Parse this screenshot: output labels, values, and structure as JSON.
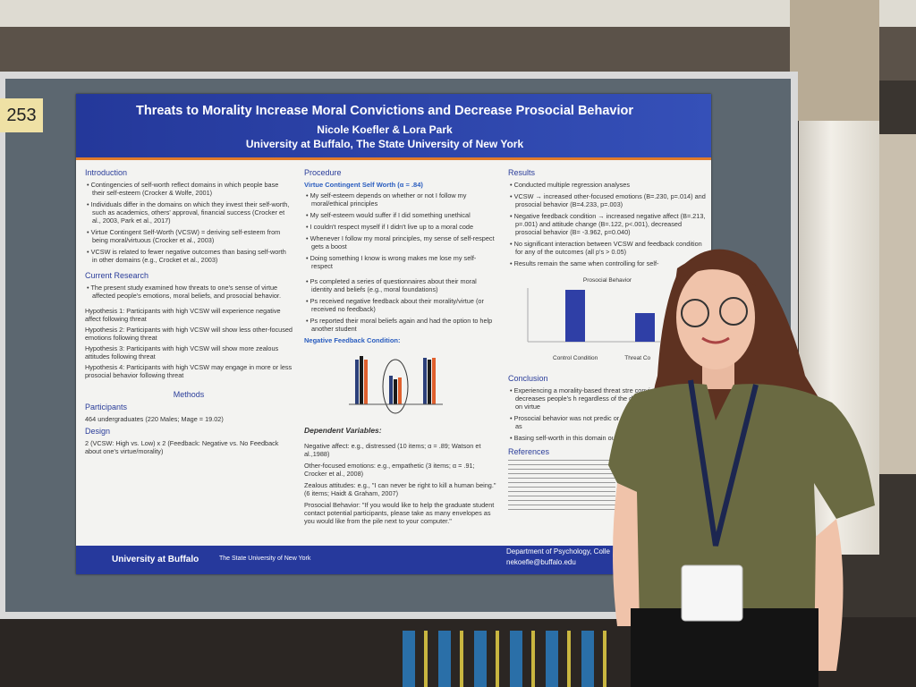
{
  "board_number": "253",
  "poster": {
    "title": "Threats to Morality Increase Moral Convictions and Decrease Prosocial Behavior",
    "authors": "Nicole Koefler & Lora Park",
    "affiliation": "University at Buffalo, The State University of New York",
    "introduction": {
      "heading": "Introduction",
      "bullets": [
        "Contingencies of self-worth reflect domains in which people base their self-esteem (Crocker & Wolfe, 2001)",
        "Individuals differ in the domains on which they invest their self-worth, such as academics, others' approval, financial success (Crocker et al., 2003, Park et al., 2017)",
        "Virtue Contingent Self-Worth (VCSW) = deriving self-esteem from being moral/virtuous (Crocker et al., 2003)",
        "VCSW is related to fewer negative outcomes than basing self-worth in other domains (e.g., Crocket et al., 2003)"
      ]
    },
    "current_research": {
      "heading": "Current Research",
      "bullets": [
        "The present study examined how threats to one's sense of virtue affected people's emotions, moral beliefs, and prosocial behavior."
      ],
      "hypotheses": [
        "Hypothesis 1: Participants with high VCSW will experience negative affect following threat",
        "Hypothesis 2: Participants with high VCSW will show less other-focused emotions following threat",
        "Hypothesis 3: Participants with high VCSW will show more zealous attitudes following threat",
        "Hypothesis 4: Participants with high VCSW may engage in more or less prosocial behavior following threat"
      ]
    },
    "methods": {
      "heading": "Methods",
      "participants_heading": "Participants",
      "participants": "464 undergraduates (220 Males; Mage = 19.02)",
      "design_heading": "Design",
      "design": "2 (VCSW: High vs. Low) x 2 (Feedback: Negative vs. No Feedback about one's virtue/morality)"
    },
    "procedure": {
      "heading": "Procedure",
      "vcsw_label": "Virtue Contingent Self Worth (α = .84)",
      "vcsw_items": [
        "My self-esteem depends on whether or not I follow my moral/ethical principles",
        "My self-esteem would suffer if I did something unethical",
        "I couldn't respect myself if I didn't live up to a moral code",
        "Whenever I follow my moral principles, my sense of self-respect gets a boost",
        "Doing something I know is wrong makes me lose my self-respect"
      ],
      "steps": [
        "Ps completed a series of questionnaires about their moral identity and beliefs (e.g., moral foundations)",
        "Ps received negative feedback about their morality/virtue (or received no feedback)",
        "Ps reported their moral beliefs again and had the option to help another student"
      ],
      "chart_label": "Negative Feedback Condition:",
      "dv_heading": "Dependent Variables:",
      "dvs": [
        "Negative affect: e.g., distressed (10 items; α = .89; Watson et al.,1988)",
        "Other-focused emotions: e.g., empathetic (3 items; α = .91; Crocker et al., 2008)",
        "Zealous attitudes: e.g., \"I can never be right to kill a human being.\" (6 items; Haidt & Graham, 2007)",
        "Prosocial Behavior: \"If you would like to help the graduate student contact potential participants, please take as many envelopes as you would like from the pile next to your computer.\""
      ]
    },
    "results": {
      "heading": "Results",
      "bullets": [
        "Conducted multiple regression analyses",
        "VCSW → increased other-focused emotions (B=.230, p=.014) and prosocial behavior (B=4.233, p=.003)",
        "Negative feedback condition → increased negative affect (B=.213, p=.001) and attitude change (B=.122, p<.001), decreased prosocial behavior (B= -3.962, p=0.040)",
        "No significant interaction between VCSW and feedback condition for any of the outcomes (all p's > 0.05)",
        "Results remain the same when controlling for self-"
      ],
      "chart_title": "Prosocial Behavior",
      "chart_categories": [
        "Control Condition",
        "Threat Co"
      ]
    },
    "conclusion": {
      "heading": "Conclusion",
      "bullets": [
        "Experiencing a morality-based threat stre convictions and decreases people's h regardless of the degree to which th worth on virtue",
        "Prosocial behavior was not predic or moral identity but increased as",
        "Basing self-worth in this domain outcomes"
      ]
    },
    "references_heading": "References",
    "footer": {
      "logo": "University at Buffalo",
      "subtitle": "The State University of New York",
      "department": "Department of Psychology, Colle",
      "email": "nekoefle@buffalo.edu"
    }
  }
}
